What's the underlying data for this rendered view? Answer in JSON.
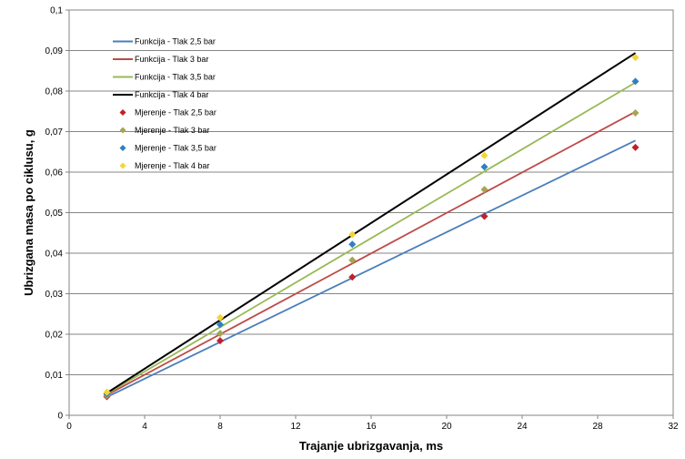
{
  "chart_data": {
    "type": "scatter",
    "title": "",
    "xlabel": "Trajanje ubrizgavanja, ms",
    "ylabel": "Ubrizgana masa po ciklusu, g",
    "xlim": [
      0,
      32
    ],
    "ylim": [
      0,
      0.1
    ],
    "x_ticks": [
      0,
      4,
      8,
      12,
      16,
      20,
      24,
      28,
      32
    ],
    "x_tick_labels": [
      "0",
      "4",
      "8",
      "12",
      "16",
      "20",
      "24",
      "28",
      "32"
    ],
    "y_ticks": [
      0,
      0.01,
      0.02,
      0.03,
      0.04,
      0.05,
      0.06,
      0.07,
      0.08,
      0.09,
      0.1
    ],
    "y_tick_labels": [
      "0",
      "0,01",
      "0,02",
      "0,03",
      "0,04",
      "0,05",
      "0,06",
      "0,07",
      "0,08",
      "0,09",
      "0,1"
    ],
    "grid": "horizontal",
    "legend_position": "top-left",
    "lines": [
      {
        "name": "Funkcija - Tlak 2,5 bar",
        "color": "#4a7ebb",
        "x": [
          2,
          30
        ],
        "y": [
          0.0045,
          0.0678
        ]
      },
      {
        "name": "Funkcija - Tlak 3 bar",
        "color": "#be4b48",
        "x": [
          2,
          30
        ],
        "y": [
          0.005,
          0.0749
        ]
      },
      {
        "name": "Funkcija - Tlak 3,5 bar",
        "color": "#98b954",
        "x": [
          2,
          30
        ],
        "y": [
          0.0053,
          0.0821
        ]
      },
      {
        "name": "Funkcija - Tlak 4 bar",
        "color": "#000000",
        "x": [
          2,
          30
        ],
        "y": [
          0.0055,
          0.0894
        ]
      }
    ],
    "series": [
      {
        "name": "Mjerenje - Tlak 2,5 bar",
        "color": "#c0202a",
        "x": [
          2,
          8,
          15,
          22,
          30
        ],
        "y": [
          0.0046,
          0.0184,
          0.0341,
          0.0491,
          0.0661
        ]
      },
      {
        "name": "Mjerenje - Tlak 3 bar",
        "color": "#a5a552",
        "x": [
          2,
          8,
          15,
          22,
          30
        ],
        "y": [
          0.0049,
          0.0202,
          0.0383,
          0.0557,
          0.0746
        ]
      },
      {
        "name": "Mjerenje - Tlak 3,5 bar",
        "color": "#2f7fc4",
        "x": [
          2,
          8,
          15,
          22,
          30
        ],
        "y": [
          0.0053,
          0.0224,
          0.0422,
          0.0613,
          0.0824
        ]
      },
      {
        "name": "Mjerenje - Tlak 4 bar",
        "color": "#f7d433",
        "x": [
          2,
          8,
          15,
          22,
          30
        ],
        "y": [
          0.0057,
          0.0241,
          0.0446,
          0.0641,
          0.0883
        ]
      }
    ]
  }
}
